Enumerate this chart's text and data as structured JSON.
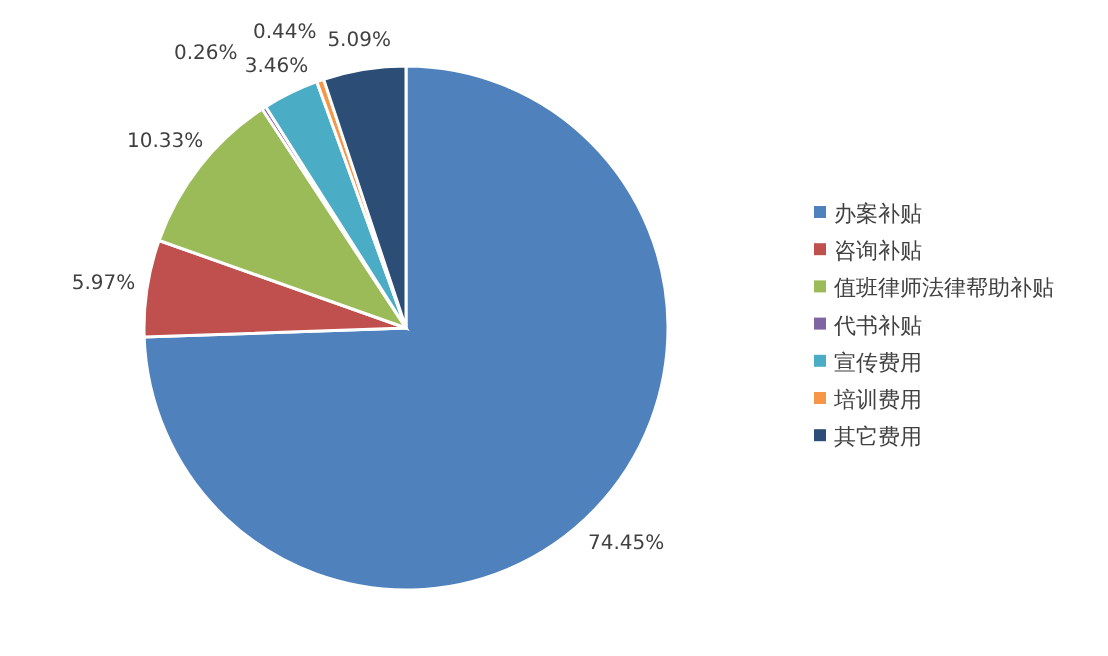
{
  "chart_data": {
    "type": "pie",
    "categories": [
      "办案补贴",
      "咨询补贴",
      "值班律师法律帮助补贴",
      "代书补贴",
      "宣传费用",
      "培训费用",
      "其它费用"
    ],
    "values": [
      74.45,
      5.97,
      10.33,
      0.26,
      3.46,
      0.44,
      5.09
    ],
    "colors": [
      "#4f81bd",
      "#c0504d",
      "#9bbb59",
      "#8064a2",
      "#4bacc6",
      "#f79646",
      "#2c4d75"
    ],
    "value_labels": [
      "74.45%",
      "5.97%",
      "10.33%",
      "0.26%",
      "3.46%",
      "0.44%",
      "5.09%"
    ],
    "legend": "right"
  }
}
